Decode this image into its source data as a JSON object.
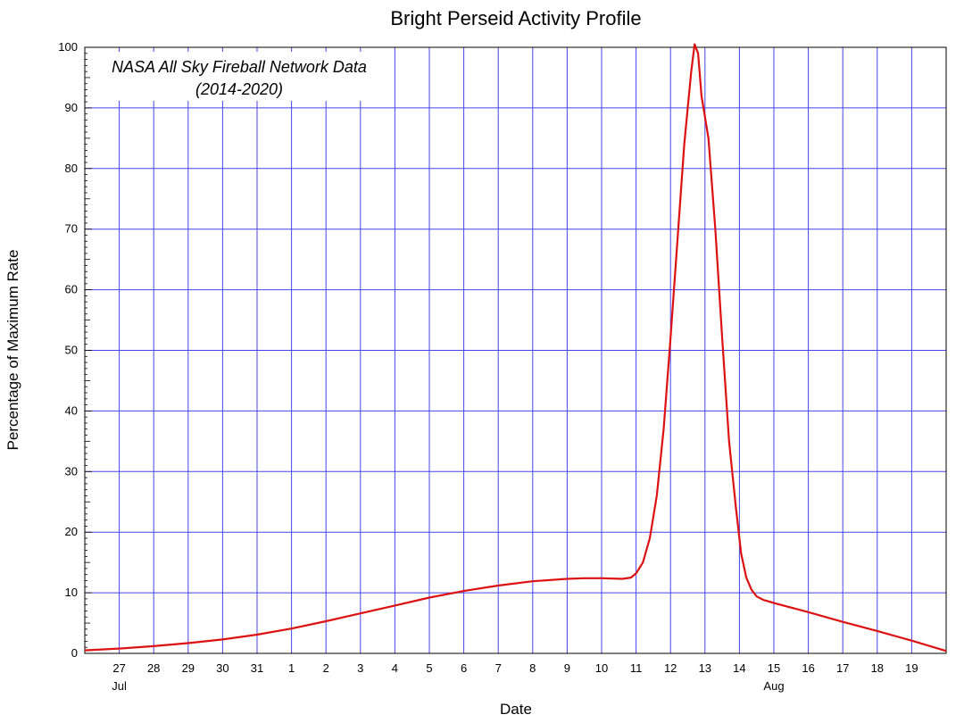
{
  "chart_data": {
    "type": "line",
    "title": "Bright Perseid Activity Profile",
    "xlabel": "Date",
    "ylabel": "Percentage of Maximum Rate",
    "annotation": [
      "NASA All Sky Fireball Network Data",
      "(2014-2020)"
    ],
    "ylim": [
      0,
      100
    ],
    "yticks": [
      0,
      10,
      20,
      30,
      40,
      50,
      60,
      70,
      80,
      90,
      100
    ],
    "xlim": [
      "Jul 26",
      "Aug 20"
    ],
    "xticks": [
      "Jul 27",
      "Jul 28",
      "Jul 29",
      "Jul 30",
      "Jul 31",
      "Aug 1",
      "Aug 2",
      "Aug 3",
      "Aug 4",
      "Aug 5",
      "Aug 6",
      "Aug 7",
      "Aug 8",
      "Aug 9",
      "Aug 10",
      "Aug 11",
      "Aug 12",
      "Aug 13",
      "Aug 14",
      "Aug 15",
      "Aug 16",
      "Aug 17",
      "Aug 18",
      "Aug 19"
    ],
    "xtick_labels": [
      "27",
      "28",
      "29",
      "30",
      "31",
      "1",
      "2",
      "3",
      "4",
      "5",
      "6",
      "7",
      "8",
      "9",
      "10",
      "11",
      "12",
      "13",
      "14",
      "15",
      "16",
      "17",
      "18",
      "19"
    ],
    "month_labels": [
      {
        "label": "Jul",
        "at": "Jul 27"
      },
      {
        "label": "Aug",
        "at": "Aug 15"
      }
    ],
    "grid": true,
    "line_color": "#dd1111",
    "grid_color": "#4444ee",
    "series": [
      {
        "x": [
          "Jul 26",
          "Jul 27",
          "Jul 28",
          "Jul 29",
          "Jul 30",
          "Jul 31",
          "Aug 1",
          "Aug 2",
          "Aug 3",
          "Aug 4",
          "Aug 5",
          "Aug 6",
          "Aug 7",
          "Aug 8",
          "Aug 9",
          "Aug 9.5",
          "Aug 10",
          "Aug 10.6",
          "Aug 10.85",
          "Aug 11",
          "Aug 11.2",
          "Aug 11.4",
          "Aug 11.6",
          "Aug 11.8",
          "Aug 12",
          "Aug 12.2",
          "Aug 12.4",
          "Aug 12.5",
          "Aug 12.6",
          "Aug 12.7",
          "Aug 12.8",
          "Aug 12.9",
          "Aug 13.1",
          "Aug 13.3",
          "Aug 13.5",
          "Aug 13.7",
          "Aug 13.9",
          "Aug 14.05",
          "Aug 14.2",
          "Aug 14.35",
          "Aug 14.5",
          "Aug 14.7",
          "Aug 14.9",
          "Aug 15",
          "Aug 16",
          "Aug 17",
          "Aug 18",
          "Aug 19",
          "Aug 20"
        ],
        "y": [
          0.5,
          0.8,
          1.2,
          1.7,
          2.3,
          3.1,
          4.1,
          5.3,
          6.6,
          7.9,
          9.2,
          10.3,
          11.2,
          11.9,
          12.3,
          12.4,
          12.4,
          12.3,
          12.5,
          13.2,
          15.0,
          19.0,
          26.0,
          37.0,
          52.0,
          68.0,
          84.0,
          90.0,
          96.0,
          100.5,
          99.0,
          92.0,
          85.0,
          70.0,
          52.0,
          35.0,
          24.0,
          16.5,
          12.5,
          10.5,
          9.4,
          8.8,
          8.5,
          8.3,
          6.8,
          5.2,
          3.7,
          2.1,
          0.4
        ]
      }
    ]
  }
}
